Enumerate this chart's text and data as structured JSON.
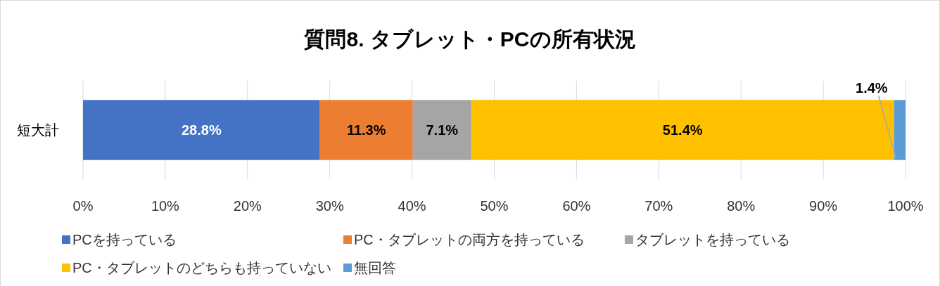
{
  "chart_data": {
    "type": "bar",
    "title": "質問8. タブレット・PCの所有状況",
    "orientation": "horizontal",
    "stacked": true,
    "categories": [
      "短大計"
    ],
    "series": [
      {
        "name": "PCを持っている",
        "color": "#4472c4",
        "values": [
          28.8
        ],
        "value_labels": [
          "28.8%"
        ]
      },
      {
        "name": "PC・タブレットの両方を持っている",
        "color": "#ed7d31",
        "values": [
          11.3
        ],
        "value_labels": [
          "11.3%"
        ]
      },
      {
        "name": "タブレットを持っている",
        "color": "#a5a5a5",
        "values": [
          7.1
        ],
        "value_labels": [
          "7.1%"
        ]
      },
      {
        "name": "PC・タブレットのどちらも持っていない",
        "color": "#ffc000",
        "values": [
          51.4
        ],
        "value_labels": [
          "51.4%"
        ]
      },
      {
        "name": "無回答",
        "color": "#5b9bd5",
        "values": [
          1.4
        ],
        "value_labels": [
          "1.4%"
        ]
      }
    ],
    "xlim": [
      0,
      100
    ],
    "xticks": [
      {
        "value": 0,
        "label": "0%"
      },
      {
        "value": 10,
        "label": "10%"
      },
      {
        "value": 20,
        "label": "20%"
      },
      {
        "value": 30,
        "label": "30%"
      },
      {
        "value": 40,
        "label": "40%"
      },
      {
        "value": 50,
        "label": "50%"
      },
      {
        "value": 60,
        "label": "60%"
      },
      {
        "value": 70,
        "label": "70%"
      },
      {
        "value": 80,
        "label": "80%"
      },
      {
        "value": 90,
        "label": "90%"
      },
      {
        "value": 100,
        "label": "100%"
      }
    ],
    "grid": "x",
    "legend": "bottom"
  }
}
